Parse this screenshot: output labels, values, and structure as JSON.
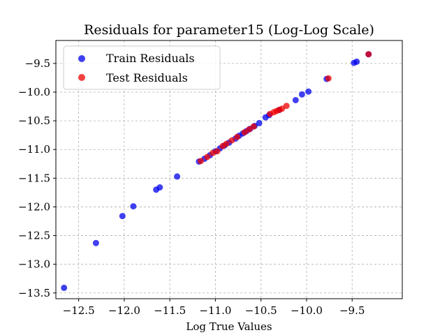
{
  "chart_data": {
    "type": "scatter",
    "title": "Residuals for parameter15 (Log-Log Scale)",
    "xlabel": "Log True Values",
    "ylabel": "",
    "xlim": [
      -12.75,
      -8.95
    ],
    "ylim": [
      -13.6,
      -9.1
    ],
    "x_ticks": [
      -12.5,
      -12.0,
      -11.5,
      -11.0,
      -10.5,
      -10.0,
      -9.5
    ],
    "x_tick_labels": [
      "−12.5",
      "−12.0",
      "−11.5",
      "−11.0",
      "−10.5",
      "−10.0",
      "−9.5"
    ],
    "y_ticks": [
      -9.5,
      -10.0,
      -10.5,
      -11.0,
      -11.5,
      -12.0,
      -12.5,
      -13.0,
      -13.5
    ],
    "y_tick_labels": [
      "−9.5",
      "−10.0",
      "−10.5",
      "−11.0",
      "−11.5",
      "−12.0",
      "−12.5",
      "−13.0",
      "−13.5"
    ],
    "grid": true,
    "legend_position": "top-left",
    "series": [
      {
        "name": "Train Residuals",
        "color": "#0000ee",
        "points": [
          [
            -12.66,
            -13.41
          ],
          [
            -12.31,
            -12.63
          ],
          [
            -12.02,
            -12.16
          ],
          [
            -11.9,
            -11.99
          ],
          [
            -11.65,
            -11.7
          ],
          [
            -11.61,
            -11.66
          ],
          [
            -11.42,
            -11.47
          ],
          [
            -11.18,
            -11.21
          ],
          [
            -11.12,
            -11.16
          ],
          [
            -11.06,
            -11.1
          ],
          [
            -11.0,
            -11.03
          ],
          [
            -10.95,
            -10.98
          ],
          [
            -10.9,
            -10.93
          ],
          [
            -10.85,
            -10.88
          ],
          [
            -10.78,
            -10.81
          ],
          [
            -10.74,
            -10.76
          ],
          [
            -10.7,
            -10.72
          ],
          [
            -10.66,
            -10.68
          ],
          [
            -10.62,
            -10.64
          ],
          [
            -10.57,
            -10.59
          ],
          [
            -10.52,
            -10.54
          ],
          [
            -10.45,
            -10.44
          ],
          [
            -10.41,
            -10.4
          ],
          [
            -10.3,
            -10.31
          ],
          [
            -10.12,
            -10.14
          ],
          [
            -10.05,
            -10.04
          ],
          [
            -9.98,
            -9.99
          ],
          [
            -9.78,
            -9.77
          ],
          [
            -9.48,
            -9.49
          ],
          [
            -9.45,
            -9.47
          ],
          [
            -9.32,
            -9.34
          ]
        ]
      },
      {
        "name": "Test Residuals",
        "color": "#ee0000",
        "points": [
          [
            -11.16,
            -11.2
          ],
          [
            -11.09,
            -11.13
          ],
          [
            -11.03,
            -11.06
          ],
          [
            -10.98,
            -11.03
          ],
          [
            -10.92,
            -10.94
          ],
          [
            -10.88,
            -10.9
          ],
          [
            -10.82,
            -10.84
          ],
          [
            -10.76,
            -10.78
          ],
          [
            -10.68,
            -10.7
          ],
          [
            -10.63,
            -10.65
          ],
          [
            -10.58,
            -10.6
          ],
          [
            -10.4,
            -10.38
          ],
          [
            -10.36,
            -10.35
          ],
          [
            -10.33,
            -10.33
          ],
          [
            -10.3,
            -10.31
          ],
          [
            -10.27,
            -10.29
          ],
          [
            -10.22,
            -10.24
          ],
          [
            -9.76,
            -9.76
          ],
          [
            -9.32,
            -9.34
          ]
        ]
      }
    ]
  }
}
